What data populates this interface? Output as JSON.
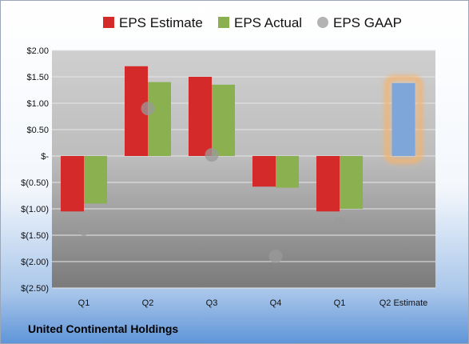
{
  "company": "United Continental Holdings",
  "chart_data": {
    "type": "bar",
    "categories": [
      "Q1",
      "Q2",
      "Q3",
      "Q4",
      "Q1",
      "Q2 Estimate"
    ],
    "series": [
      {
        "name": "EPS Estimate",
        "color": "#d42a2a",
        "values": [
          -1.05,
          1.7,
          1.5,
          -0.58,
          -1.05,
          null
        ]
      },
      {
        "name": "EPS Actual",
        "color": "#8bb050",
        "values": [
          -0.9,
          1.4,
          1.35,
          -0.6,
          -1.0,
          1.38
        ]
      },
      {
        "name": "EPS GAAP",
        "color": "#aab3bd",
        "marker": "circle",
        "values": [
          -1.38,
          0.9,
          0.02,
          -1.9,
          -1.28,
          null
        ]
      }
    ],
    "highlight": {
      "category": "Q2 Estimate",
      "value": 1.38,
      "fill": "#7ea6d8",
      "glow": "#f5b26a"
    },
    "ylim": [
      -2.5,
      2.0
    ],
    "yticks": [
      {
        "value": 2.0,
        "label": "$2.00"
      },
      {
        "value": 1.5,
        "label": "$1.50"
      },
      {
        "value": 1.0,
        "label": "$1.00"
      },
      {
        "value": 0.5,
        "label": "$0.50"
      },
      {
        "value": 0.0,
        "label": "$-"
      },
      {
        "value": -0.5,
        "label": "$(0.50)"
      },
      {
        "value": -1.0,
        "label": "$(1.00)"
      },
      {
        "value": -1.5,
        "label": "$(1.50)"
      },
      {
        "value": -2.0,
        "label": "$(2.00)"
      },
      {
        "value": -2.5,
        "label": "$(2.50)"
      }
    ],
    "grid": true,
    "legend": "top"
  }
}
